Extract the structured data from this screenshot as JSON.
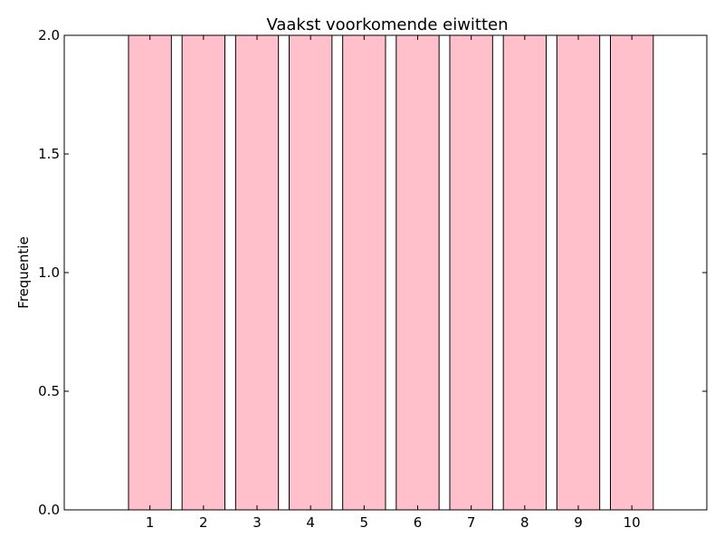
{
  "chart_data": {
    "type": "bar",
    "title": "Vaakst voorkomende eiwitten",
    "xlabel": "",
    "ylabel": "Frequentie",
    "categories": [
      "1",
      "2",
      "3",
      "4",
      "5",
      "6",
      "7",
      "8",
      "9",
      "10"
    ],
    "x": [
      1,
      2,
      3,
      4,
      5,
      6,
      7,
      8,
      9,
      10
    ],
    "values": [
      2,
      2,
      2,
      2,
      2,
      2,
      2,
      2,
      2,
      2
    ],
    "xlim": [
      -0.6,
      11.4
    ],
    "ylim": [
      0,
      2
    ],
    "yticks": [
      0.0,
      0.5,
      1.0,
      1.5,
      2.0
    ],
    "ytick_labels": [
      "0.0",
      "0.5",
      "1.0",
      "1.5",
      "2.0"
    ],
    "grid": false,
    "legend": "none",
    "colors": {
      "bar_fill": "#ffc0cb",
      "bar_edge": "#000000",
      "axes": "#000000",
      "background": "#ffffff"
    }
  }
}
